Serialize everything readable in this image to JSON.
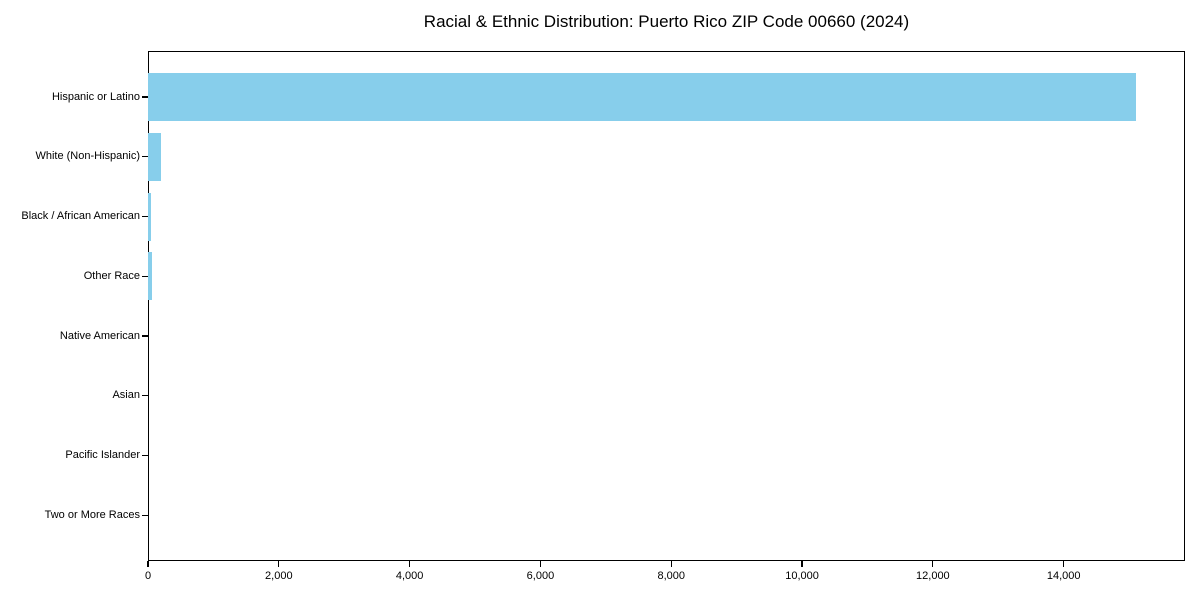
{
  "chart_data": {
    "type": "bar",
    "orientation": "horizontal",
    "title": "Racial & Ethnic Distribution: Puerto Rico ZIP Code 00660 (2024)",
    "xlabel": "",
    "ylabel": "",
    "categories": [
      "Hispanic or Latino",
      "White (Non-Hispanic)",
      "Black / African American",
      "Other Race",
      "Native American",
      "Asian",
      "Pacific Islander",
      "Two or More Races"
    ],
    "values": [
      15100,
      205,
      50,
      62,
      0,
      0,
      0,
      0
    ],
    "bar_color": "#87CEEB",
    "xlim": [
      0,
      15855
    ],
    "x_ticks": [
      0,
      2000,
      4000,
      6000,
      8000,
      10000,
      12000,
      14000
    ],
    "x_tick_labels": [
      "0",
      "2,000",
      "4,000",
      "6,000",
      "8,000",
      "10,000",
      "12,000",
      "14,000"
    ],
    "grid": false,
    "legend": "none",
    "background_color": "#ffffff",
    "text_color": "#000000"
  }
}
